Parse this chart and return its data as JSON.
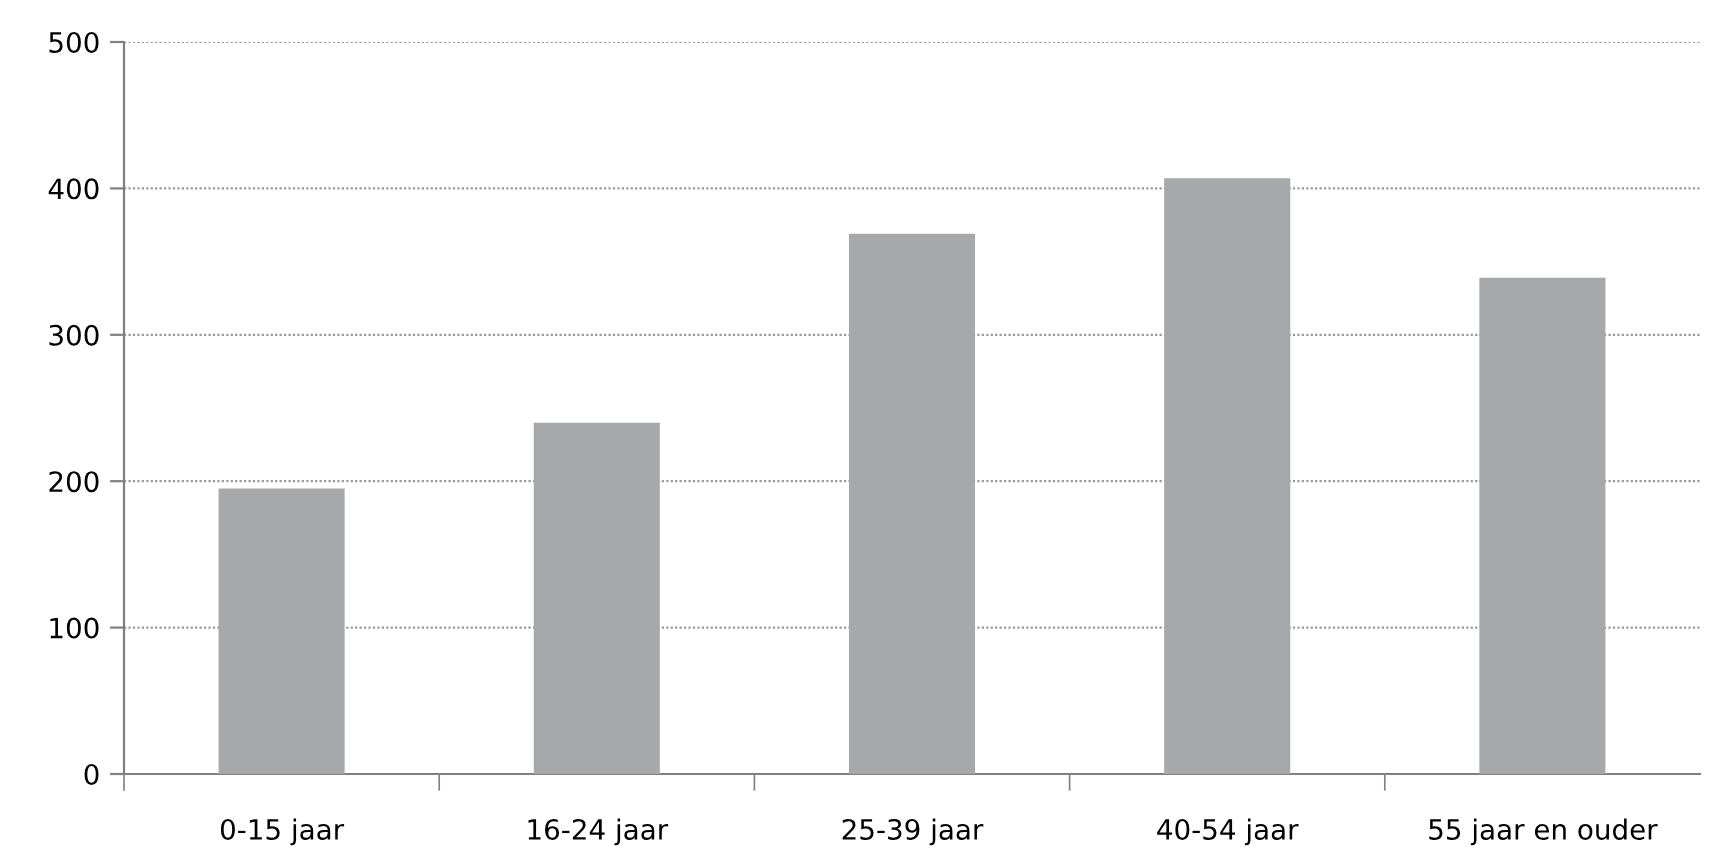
{
  "chart_data": {
    "type": "bar",
    "categories": [
      "0-15 jaar",
      "16-24 jaar",
      "25-39 jaar",
      "40-54 jaar",
      "55 jaar en ouder"
    ],
    "values": [
      195,
      240,
      369,
      407,
      339
    ],
    "color": "#a7a8aa",
    "ylim": [
      0,
      500
    ],
    "yticks": [
      0,
      100,
      200,
      300,
      400,
      500
    ],
    "grid": "y"
  }
}
